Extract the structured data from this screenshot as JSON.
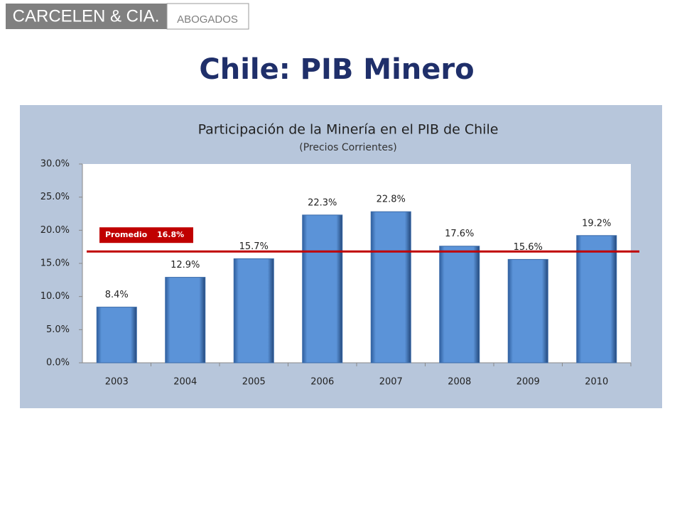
{
  "header": {
    "logo_name": "CARCELEN & CIA.",
    "logo_sub": "ABOGADOS",
    "title": "Chile: PIB Minero"
  },
  "chart_data": {
    "type": "bar",
    "title": "Participación de la Minería en el PIB de Chile",
    "subtitle": "(Precios Corrientes)",
    "categories": [
      "2003",
      "2004",
      "2005",
      "2006",
      "2007",
      "2008",
      "2009",
      "2010"
    ],
    "values": [
      8.4,
      12.9,
      15.7,
      22.3,
      22.8,
      17.6,
      15.6,
      19.2
    ],
    "value_labels": [
      "8.4%",
      "12.9%",
      "15.7%",
      "22.3%",
      "22.8%",
      "17.6%",
      "15.6%",
      "19.2%"
    ],
    "color": "#558ed5",
    "ylim": [
      0,
      30
    ],
    "yticks": [
      {
        "value": 0,
        "label": "0.0%"
      },
      {
        "value": 5,
        "label": "5.0%"
      },
      {
        "value": 10,
        "label": "10.0%"
      },
      {
        "value": 15,
        "label": "15.0%"
      },
      {
        "value": 20,
        "label": "20.0%"
      },
      {
        "value": 25,
        "label": "25.0%"
      },
      {
        "value": 30,
        "label": "30.0%"
      }
    ],
    "grid": false,
    "average": {
      "label": "Promedio",
      "value": 16.8,
      "value_label": "16.8%",
      "color": "#c00000"
    }
  }
}
